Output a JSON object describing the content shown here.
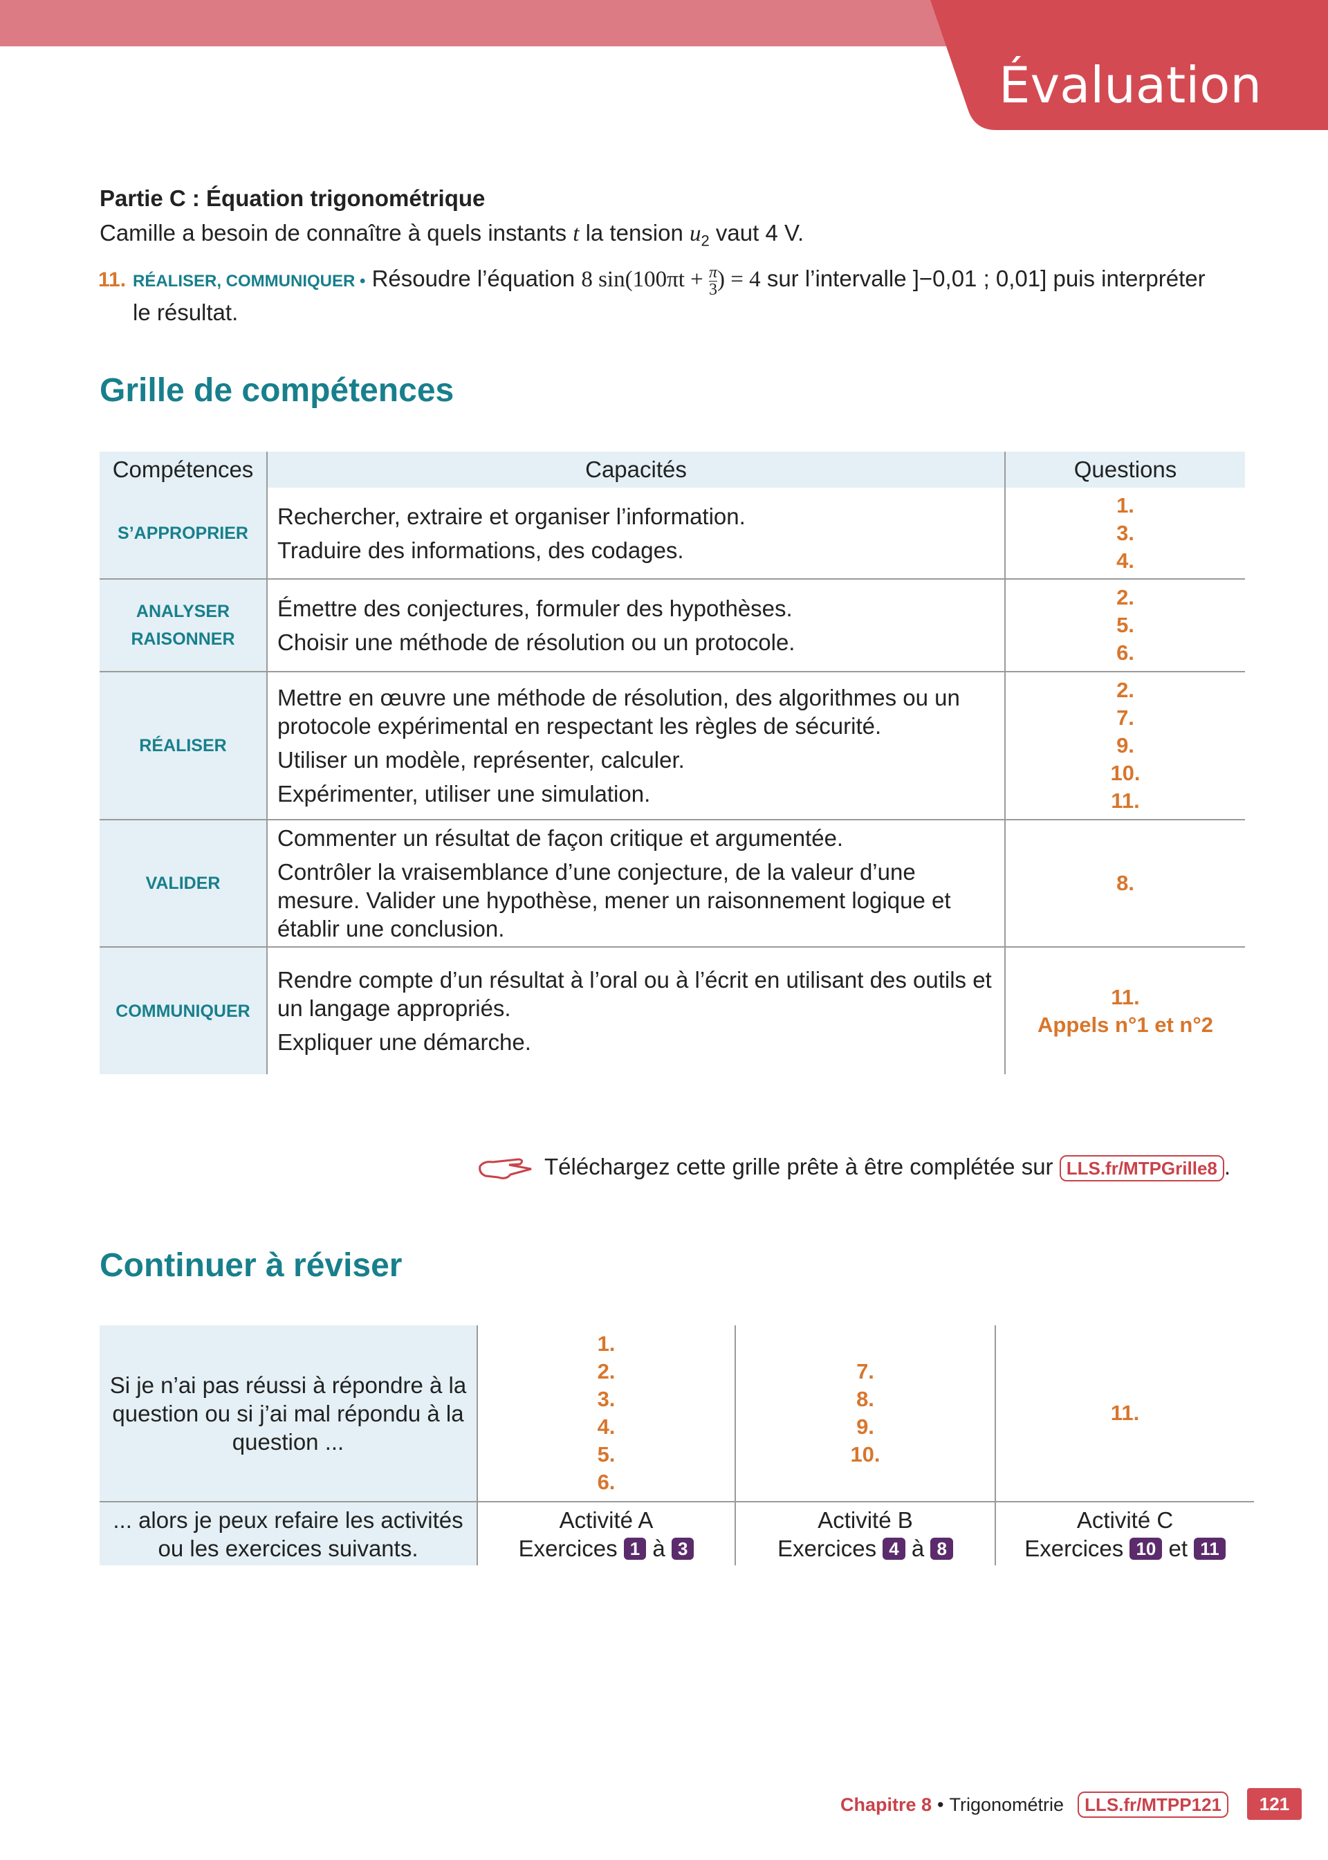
{
  "header": {
    "title": "Évaluation"
  },
  "part_c": {
    "title": "Partie C : Équation trigonométrique",
    "intro": [
      "Camille a besoin de connaître à quels instants ",
      "t",
      " la tension ",
      "u",
      "2",
      " vaut 4 V."
    ],
    "question": {
      "number": "11.",
      "tags": "RÉALISER, COMMUNIQUER •",
      "text_before": "Résoudre l’équation ",
      "equation": {
        "left": "8 sin(100πt + ",
        "num": "π",
        "den": "3",
        "right": ") = 4"
      },
      "text_after": " sur l’intervalle ]−0,01 ; 0,01] puis interpréter le résultat."
    }
  },
  "skills": {
    "title": "Grille de compétences",
    "header": [
      "Compétences",
      "Capacités",
      "Questions"
    ],
    "rows": [
      {
        "competence": [
          "S’APPROPRIER"
        ],
        "capacities": [
          "Rechercher, extraire et organiser l’information.",
          "Traduire des informations, des codages."
        ],
        "questions": [
          "1.",
          "3.",
          "4."
        ]
      },
      {
        "competence": [
          "ANALYSER",
          "RAISONNER"
        ],
        "capacities": [
          "Émettre des conjectures, formuler des hypothèses.",
          "Choisir une méthode de résolution ou un protocole."
        ],
        "questions": [
          "2.",
          "5.",
          "6."
        ]
      },
      {
        "competence": [
          "RÉALISER"
        ],
        "capacities": [
          "Mettre en œuvre une méthode de résolution, des algorithmes ou un protocole expérimental en respectant les règles de sécurité.",
          "Utiliser un modèle, représenter, calculer.",
          "Expérimenter, utiliser une simulation."
        ],
        "questions": [
          "2.",
          "7.",
          "9.",
          "10.",
          "11."
        ]
      },
      {
        "competence": [
          "VALIDER"
        ],
        "capacities": [
          "Commenter un résultat de façon critique et argumentée.",
          "Contrôler la vraisemblance d’une conjecture, de la valeur d’une mesure. Valider une hypothèse, mener un raisonnement logique et établir une conclusion."
        ],
        "questions": [
          "8."
        ]
      },
      {
        "competence": [
          "COMMUNIQUER"
        ],
        "capacities": [
          "Rendre compte d’un résultat à l’oral ou à l’écrit en utilisant des outils et un langage appropriés.",
          "Expliquer une démarche."
        ],
        "questions": [
          "11.",
          "Appels n°1 et n°2"
        ]
      }
    ]
  },
  "download": {
    "text": "Téléchargez cette grille prête à être complétée sur ",
    "link": "LLS.fr/MTPGrille8",
    "end": "."
  },
  "revise": {
    "title": "Continuer à réviser",
    "row_labels": [
      "Si je n’ai pas réussi à répondre à la question ou si j’ai mal répondu à la question ...",
      "... alors je peux refaire les activités ou les exercices suivants."
    ],
    "columns": [
      {
        "questions": [
          "1.",
          "2.",
          "3.",
          "4.",
          "5.",
          "6."
        ],
        "activity": "Activité A",
        "exercises": "Exercices",
        "from": "1",
        "connector": "à",
        "to": "3"
      },
      {
        "questions": [
          "7.",
          "8.",
          "9.",
          "10."
        ],
        "activity": "Activité B",
        "exercises": "Exercices",
        "from": "4",
        "connector": "à",
        "to": "8"
      },
      {
        "questions": [
          "11."
        ],
        "activity": "Activité C",
        "exercises": "Exercices",
        "from": "10",
        "connector": "et",
        "to": "11"
      }
    ]
  },
  "footer": {
    "chapter": "Chapitre 8",
    "separator": "•",
    "subject": "Trigonométrie",
    "link": "LLS.fr/MTPP121",
    "page": "121"
  }
}
